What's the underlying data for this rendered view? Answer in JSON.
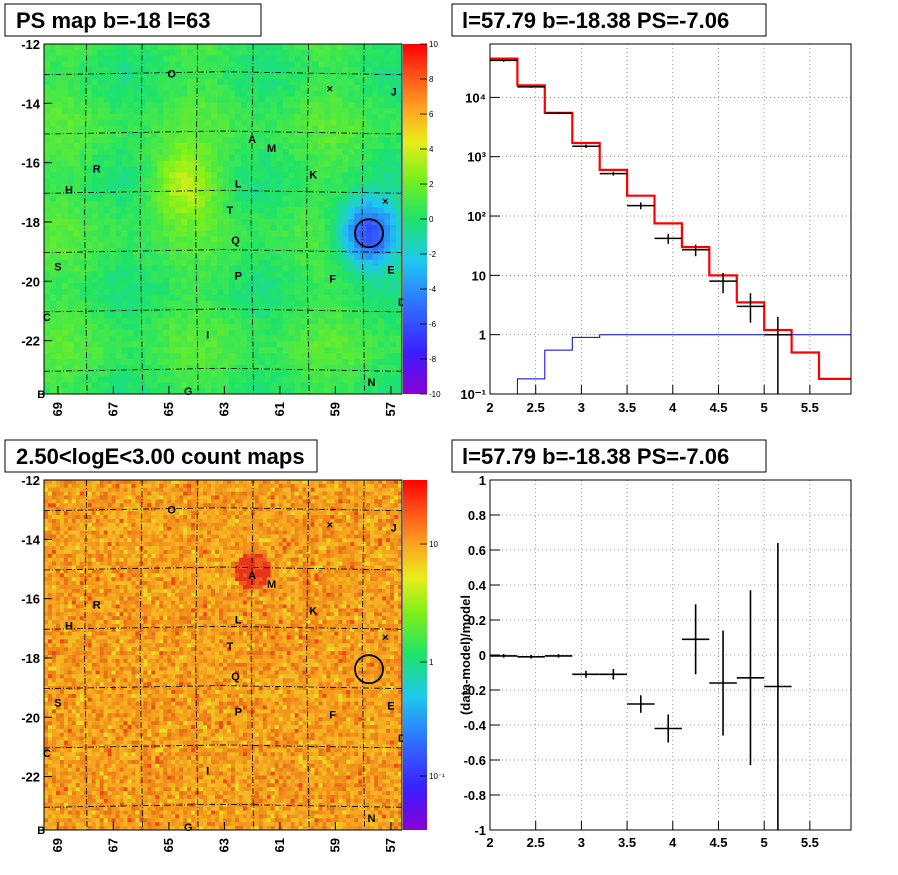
{
  "chart_data": [
    {
      "type": "heatmap",
      "title": "PS map b=-18 l=63",
      "x_ticks": [
        "69",
        "67",
        "65",
        "63",
        "61",
        "59",
        "57"
      ],
      "y_ticks": [
        "-12",
        "-14",
        "-16",
        "-18",
        "-20",
        "-22"
      ],
      "xlim": [
        69.5,
        56.6
      ],
      "ylim": [
        -23.8,
        -12
      ],
      "colorbar": {
        "range": [
          -10,
          10
        ],
        "ticks": [
          "10",
          "8",
          "6",
          "4",
          "2",
          "0",
          "-2",
          "-4",
          "-6",
          "-8",
          "-10"
        ]
      },
      "source_labels": [
        {
          "t": "O",
          "l": 64.9,
          "b": -13.0
        },
        {
          "t": "J",
          "l": 56.9,
          "b": -13.6
        },
        {
          "t": "A",
          "l": 62.0,
          "b": -15.2
        },
        {
          "t": "M",
          "l": 61.3,
          "b": -15.5
        },
        {
          "t": "K",
          "l": 59.8,
          "b": -16.4
        },
        {
          "t": "R",
          "l": 67.6,
          "b": -16.2
        },
        {
          "t": "H",
          "l": 68.6,
          "b": -16.9
        },
        {
          "t": "L",
          "l": 62.5,
          "b": -16.7
        },
        {
          "t": "T",
          "l": 62.8,
          "b": -17.6
        },
        {
          "t": "Q",
          "l": 62.6,
          "b": -18.6
        },
        {
          "t": "S",
          "l": 69.0,
          "b": -19.5
        },
        {
          "t": "P",
          "l": 62.5,
          "b": -19.8
        },
        {
          "t": "F",
          "l": 59.1,
          "b": -19.9
        },
        {
          "t": "E",
          "l": 57.0,
          "b": -19.6
        },
        {
          "t": "D",
          "l": 56.6,
          "b": -20.7
        },
        {
          "t": "C",
          "l": 69.4,
          "b": -21.2
        },
        {
          "t": "I",
          "l": 63.6,
          "b": -21.8
        },
        {
          "t": "N",
          "l": 57.7,
          "b": -23.4
        },
        {
          "t": "G",
          "l": 64.3,
          "b": -23.7
        },
        {
          "t": "B",
          "l": 69.6,
          "b": -23.8
        }
      ],
      "crosses": [
        {
          "l": 59.2,
          "b": -13.5
        },
        {
          "l": 57.2,
          "b": -17.3
        }
      ],
      "circle": {
        "l": 57.79,
        "b": -18.38
      },
      "hotspots": [
        {
          "l": 57.8,
          "b": -18.4,
          "v": -7
        },
        {
          "l": 64.5,
          "b": -16.7,
          "v": 3
        }
      ]
    },
    {
      "type": "line",
      "title": "l=57.79 b=-18.38 PS=-7.06",
      "x_ticks": [
        "2",
        "2.5",
        "3",
        "3.5",
        "4",
        "4.5",
        "5",
        "5.5"
      ],
      "y_ticks": [
        "10⁻¹",
        "1",
        "10",
        "10²",
        "10³",
        "10⁴"
      ],
      "xlim": [
        2,
        5.95
      ],
      "ylim_log10": [
        -1,
        4.9
      ],
      "bin_edges": [
        2,
        2.3,
        2.6,
        2.9,
        3.2,
        3.5,
        3.8,
        4.1,
        4.4,
        4.7,
        5.0,
        5.3,
        5.6,
        5.95
      ],
      "series": [
        {
          "values": [
            45000,
            16000,
            5500,
            1700,
            600,
            220,
            75,
            30,
            10,
            3.5,
            1.2,
            0.5,
            0.18
          ]
        },
        {
          "values": [
            0.1,
            0.18,
            0.55,
            0.9,
            1,
            1,
            1,
            1,
            1,
            1,
            1,
            1,
            1
          ]
        }
      ],
      "points": [
        {
          "x": 2.15,
          "y": 42000,
          "ylo": 40000,
          "yhi": 44000
        },
        {
          "x": 2.45,
          "y": 15000,
          "ylo": 14500,
          "yhi": 15500
        },
        {
          "x": 2.75,
          "y": 5400,
          "ylo": 5200,
          "yhi": 5600
        },
        {
          "x": 3.05,
          "y": 1500,
          "ylo": 1400,
          "yhi": 1600
        },
        {
          "x": 3.35,
          "y": 520,
          "ylo": 480,
          "yhi": 560
        },
        {
          "x": 3.65,
          "y": 150,
          "ylo": 130,
          "yhi": 170
        },
        {
          "x": 3.95,
          "y": 42,
          "ylo": 34,
          "yhi": 50
        },
        {
          "x": 4.25,
          "y": 27,
          "ylo": 21,
          "yhi": 33
        },
        {
          "x": 4.55,
          "y": 8,
          "ylo": 5,
          "yhi": 11
        },
        {
          "x": 4.85,
          "y": 3,
          "ylo": 1.6,
          "yhi": 5
        },
        {
          "x": 5.15,
          "y": 1,
          "ylo": 0.1,
          "yhi": 2
        }
      ]
    },
    {
      "type": "heatmap",
      "title": "2.50<logE<3.00 count maps",
      "x_ticks": [
        "69",
        "67",
        "65",
        "63",
        "61",
        "59",
        "57"
      ],
      "y_ticks": [
        "-12",
        "-14",
        "-16",
        "-18",
        "-20",
        "-22"
      ],
      "colorbar": {
        "scale": "log",
        "ticks": [
          "10",
          "1",
          "10⁻¹"
        ]
      }
    },
    {
      "type": "scatter",
      "title": "l=57.79 b=-18.38 PS=-7.06",
      "ylabel": "(data-model)/model",
      "x_ticks": [
        "2",
        "2.5",
        "3",
        "3.5",
        "4",
        "4.5",
        "5",
        "5.5"
      ],
      "y_ticks": [
        "1",
        "0.8",
        "0.6",
        "0.4",
        "0.2",
        "0",
        "-0.2",
        "-0.4",
        "-0.6",
        "-0.8",
        "-1"
      ],
      "xlim": [
        2,
        5.95
      ],
      "ylim": [
        -1,
        1
      ],
      "points": [
        {
          "x": 2.15,
          "y": -0.005,
          "dy": 0.01,
          "dx": 0.15
        },
        {
          "x": 2.45,
          "y": -0.01,
          "dy": 0.01,
          "dx": 0.15
        },
        {
          "x": 2.75,
          "y": -0.005,
          "dy": 0.01,
          "dx": 0.15
        },
        {
          "x": 3.05,
          "y": -0.11,
          "dy": 0.02,
          "dx": 0.15
        },
        {
          "x": 3.35,
          "y": -0.11,
          "dy": 0.03,
          "dx": 0.15
        },
        {
          "x": 3.65,
          "y": -0.28,
          "dy": 0.05,
          "dx": 0.15
        },
        {
          "x": 3.95,
          "y": -0.42,
          "dy": 0.08,
          "dx": 0.15
        },
        {
          "x": 4.25,
          "y": 0.09,
          "dy": 0.2,
          "dx": 0.15
        },
        {
          "x": 4.55,
          "y": -0.16,
          "dy": 0.3,
          "dx": 0.15
        },
        {
          "x": 4.85,
          "y": -0.13,
          "dy": 0.5,
          "dx": 0.15
        },
        {
          "x": 5.15,
          "y": -0.18,
          "dy": 0.82,
          "dx": 0.15
        }
      ]
    }
  ]
}
